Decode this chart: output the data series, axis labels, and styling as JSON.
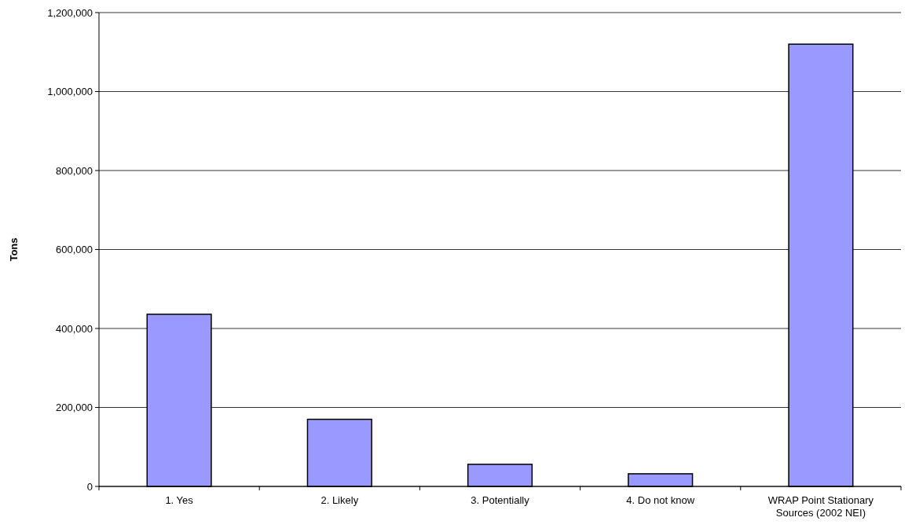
{
  "chart_data": {
    "type": "bar",
    "ylabel": "Tons",
    "categories": [
      "1. Yes",
      "2. Likely",
      "3. Potentially",
      "4. Do not know",
      "WRAP Point Stationary Sources (2002 NEI)"
    ],
    "values": [
      436000,
      170000,
      56000,
      32000,
      1120000
    ],
    "color": "#9999ff",
    "ylim": [
      0,
      1200000
    ],
    "yticks": [
      {
        "value": 0,
        "label": "0"
      },
      {
        "value": 200000,
        "label": "200,000"
      },
      {
        "value": 400000,
        "label": "400,000"
      },
      {
        "value": 600000,
        "label": "600,000"
      },
      {
        "value": 800000,
        "label": "800,000"
      },
      {
        "value": 1000000,
        "label": "1,000,000"
      },
      {
        "value": 1200000,
        "label": "1,200,000"
      }
    ],
    "grid": "y"
  }
}
